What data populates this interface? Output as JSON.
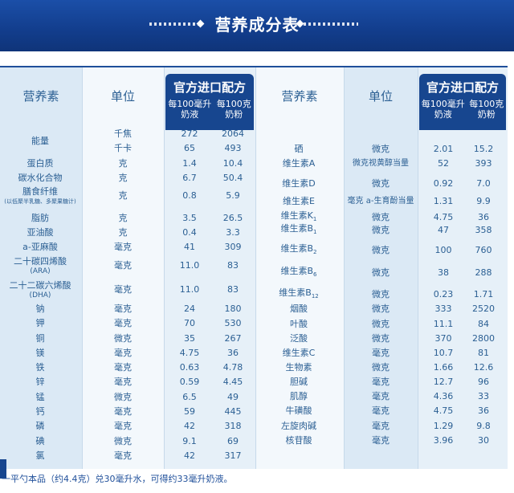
{
  "banner": {
    "title": "营养成分表"
  },
  "headers": {
    "nutrient_left": "营养素",
    "unit_left": "单位",
    "brand_left": "官方进口配方",
    "sub_left_1": "每100毫升\n奶液",
    "sub_left_2": "每100克\n奶粉",
    "nutrient_right": "营养素",
    "unit_right": "单位",
    "brand_right": "官方进口配方",
    "sub_right_1": "每100毫升\n奶液",
    "sub_right_2": "每100克\n奶粉"
  },
  "left_rows": [
    {
      "name": "能量",
      "unit": "千焦",
      "v1": "272",
      "v2": "2064"
    },
    {
      "name": "",
      "unit": "千卡",
      "v1": "65",
      "v2": "493"
    },
    {
      "name": "蛋白质",
      "unit": "克",
      "v1": "1.4",
      "v2": "10.4"
    },
    {
      "name": "碳水化合物",
      "unit": "克",
      "v1": "6.7",
      "v2": "50.4"
    },
    {
      "name": "膳食纤维",
      "note": "(以低聚半乳糖、多聚果糖计)",
      "unit": "克",
      "v1": "0.8",
      "v2": "5.9"
    },
    {
      "name": "脂肪",
      "unit": "克",
      "v1": "3.5",
      "v2": "26.5"
    },
    {
      "name": "亚油酸",
      "unit": "克",
      "v1": "0.4",
      "v2": "3.3"
    },
    {
      "name": "a-亚麻酸",
      "unit": "毫克",
      "v1": "41",
      "v2": "309"
    },
    {
      "name": "二十碳四烯酸",
      "note": "(ARA)",
      "unit": "毫克",
      "v1": "11.0",
      "v2": "83"
    },
    {
      "name": "二十二碳六烯酸",
      "note": "(DHA)",
      "unit": "毫克",
      "v1": "11.0",
      "v2": "83"
    },
    {
      "name": "钠",
      "unit": "毫克",
      "v1": "24",
      "v2": "180"
    },
    {
      "name": "钾",
      "unit": "毫克",
      "v1": "70",
      "v2": "530"
    },
    {
      "name": "铜",
      "unit": "微克",
      "v1": "35",
      "v2": "267"
    },
    {
      "name": "镁",
      "unit": "毫克",
      "v1": "4.75",
      "v2": "36"
    },
    {
      "name": "铁",
      "unit": "毫克",
      "v1": "0.63",
      "v2": "4.78"
    },
    {
      "name": "锌",
      "unit": "毫克",
      "v1": "0.59",
      "v2": "4.45"
    },
    {
      "name": "锰",
      "unit": "微克",
      "v1": "6.5",
      "v2": "49"
    },
    {
      "name": "钙",
      "unit": "毫克",
      "v1": "59",
      "v2": "445"
    },
    {
      "name": "磷",
      "unit": "毫克",
      "v1": "42",
      "v2": "318"
    },
    {
      "name": "碘",
      "unit": "微克",
      "v1": "9.1",
      "v2": "69"
    },
    {
      "name": "氯",
      "unit": "毫克",
      "v1": "42",
      "v2": "317"
    }
  ],
  "right_rows": [
    {
      "name": "硒",
      "unit": "微克",
      "v1": "2.01",
      "v2": "15.2"
    },
    {
      "name": "维生素A",
      "unit": "微克视黄醇当量",
      "v1": "52",
      "v2": "393"
    },
    {
      "name": "维生素D",
      "unit": "微克",
      "v1": "0.92",
      "v2": "7.0"
    },
    {
      "name": "维生素E",
      "unit": "毫克 a-生育酚当量",
      "v1": "1.31",
      "v2": "9.9"
    },
    {
      "name": "维生素K",
      "sub": "1",
      "unit": "微克",
      "v1": "4.75",
      "v2": "36"
    },
    {
      "name": "维生素B",
      "sub": "1",
      "unit": "微克",
      "v1": "47",
      "v2": "358"
    },
    {
      "name": "维生素B",
      "sub": "2",
      "unit": "微克",
      "v1": "100",
      "v2": "760"
    },
    {
      "name": "维生素B",
      "sub": "6",
      "unit": "微克",
      "v1": "38",
      "v2": "288"
    },
    {
      "name": "维生素B",
      "sub": "12",
      "unit": "微克",
      "v1": "0.23",
      "v2": "1.71"
    },
    {
      "name": "烟酸",
      "unit": "微克",
      "v1": "333",
      "v2": "2520"
    },
    {
      "name": "叶酸",
      "unit": "微克",
      "v1": "11.1",
      "v2": "84"
    },
    {
      "name": "泛酸",
      "unit": "微克",
      "v1": "370",
      "v2": "2800"
    },
    {
      "name": "维生素C",
      "unit": "毫克",
      "v1": "10.7",
      "v2": "81"
    },
    {
      "name": "生物素",
      "unit": "微克",
      "v1": "1.66",
      "v2": "12.6"
    },
    {
      "name": "胆碱",
      "unit": "毫克",
      "v1": "12.7",
      "v2": "96"
    },
    {
      "name": "肌醇",
      "unit": "毫克",
      "v1": "4.36",
      "v2": "33"
    },
    {
      "name": "牛磺酸",
      "unit": "毫克",
      "v1": "4.75",
      "v2": "36"
    },
    {
      "name": "左旋肉碱",
      "unit": "毫克",
      "v1": "1.29",
      "v2": "9.8"
    },
    {
      "name": "核苷酸",
      "unit": "毫克",
      "v1": "3.96",
      "v2": "30"
    }
  ],
  "footer": "一平勺本品（约4.4克）兑30毫升水，可得约33毫升奶液。",
  "colors": {
    "banner": "#123d8c",
    "header_box": "#17468f",
    "text": "#2b5f93",
    "column_tint": "#dbe9f5"
  }
}
